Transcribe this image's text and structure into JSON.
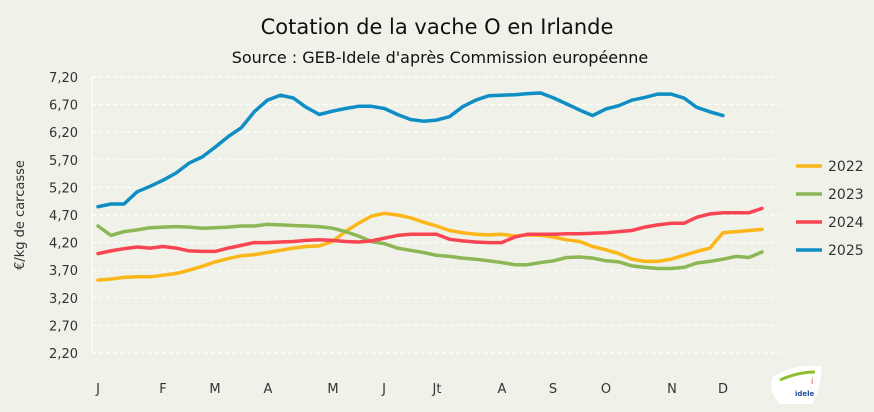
{
  "chart_data": {
    "type": "line",
    "title": "Cotation de la vache O en Irlande",
    "subtitle": "Source : GEB-Idele d'après Commission européenne",
    "xlabel": "",
    "ylabel": "€/kg de carcasse",
    "ylim": [
      2.2,
      7.2
    ],
    "yticks": [
      "7,20",
      "6,70",
      "6,20",
      "5,70",
      "5,20",
      "4,70",
      "4,20",
      "3,70",
      "3,20",
      "2,70",
      "2,20"
    ],
    "xticks": [
      "J",
      "F",
      "M",
      "A",
      "M",
      "J",
      "Jt",
      "A",
      "S",
      "O",
      "N",
      "D"
    ],
    "x_unit": "week",
    "grid": true,
    "legend_position": "right",
    "series": [
      {
        "name": "2022",
        "color": "#fbb61a",
        "values": [
          3.52,
          3.54,
          3.57,
          3.58,
          3.58,
          3.61,
          3.64,
          3.7,
          3.77,
          3.85,
          3.91,
          3.96,
          3.98,
          4.02,
          4.06,
          4.1,
          4.13,
          4.14,
          4.22,
          4.4,
          4.55,
          4.68,
          4.73,
          4.7,
          4.65,
          4.57,
          4.5,
          4.42,
          4.38,
          4.35,
          4.34,
          4.35,
          4.32,
          4.34,
          4.33,
          4.3,
          4.25,
          4.22,
          4.13,
          4.07,
          4.0,
          3.9,
          3.86,
          3.86,
          3.9,
          3.97,
          4.04,
          4.1,
          4.38,
          4.4,
          4.42,
          4.44
        ]
      },
      {
        "name": "2023",
        "color": "#8db756",
        "values": [
          4.5,
          4.33,
          4.4,
          4.43,
          4.47,
          4.48,
          4.49,
          4.48,
          4.46,
          4.47,
          4.48,
          4.5,
          4.5,
          4.53,
          4.52,
          4.51,
          4.5,
          4.49,
          4.46,
          4.4,
          4.32,
          4.22,
          4.18,
          4.1,
          4.06,
          4.02,
          3.97,
          3.95,
          3.92,
          3.9,
          3.87,
          3.84,
          3.8,
          3.8,
          3.84,
          3.87,
          3.93,
          3.94,
          3.92,
          3.87,
          3.85,
          3.78,
          3.75,
          3.73,
          3.73,
          3.75,
          3.83,
          3.86,
          3.9,
          3.95,
          3.93,
          4.03
        ]
      },
      {
        "name": "2024",
        "color": "#f94552",
        "values": [
          4.0,
          4.05,
          4.09,
          4.12,
          4.1,
          4.13,
          4.1,
          4.05,
          4.04,
          4.04,
          4.1,
          4.15,
          4.2,
          4.2,
          4.21,
          4.22,
          4.24,
          4.25,
          4.24,
          4.22,
          4.21,
          4.23,
          4.28,
          4.33,
          4.35,
          4.35,
          4.35,
          4.26,
          4.23,
          4.21,
          4.2,
          4.2,
          4.3,
          4.35,
          4.35,
          4.35,
          4.36,
          4.36,
          4.37,
          4.38,
          4.4,
          4.42,
          4.48,
          4.52,
          4.55,
          4.55,
          4.66,
          4.72,
          4.74,
          4.74,
          4.74,
          4.82
        ]
      },
      {
        "name": "2025",
        "color": "#0e8ec4",
        "values": [
          4.85,
          4.9,
          4.9,
          5.12,
          5.22,
          5.33,
          5.46,
          5.64,
          5.75,
          5.93,
          6.12,
          6.28,
          6.57,
          6.78,
          6.87,
          6.82,
          6.65,
          6.52,
          6.58,
          6.63,
          6.67,
          6.67,
          6.63,
          6.52,
          6.43,
          6.4,
          6.42,
          6.48,
          6.66,
          6.78,
          6.86,
          6.87,
          6.88,
          6.9,
          6.91,
          6.82,
          6.71,
          6.6,
          6.5,
          6.62,
          6.68,
          6.78,
          6.83,
          6.89,
          6.89,
          6.82,
          6.65,
          6.57,
          6.5
        ]
      }
    ]
  },
  "logo": {
    "text": "INSTITUT DE L'ÉLEVAGE idele"
  }
}
